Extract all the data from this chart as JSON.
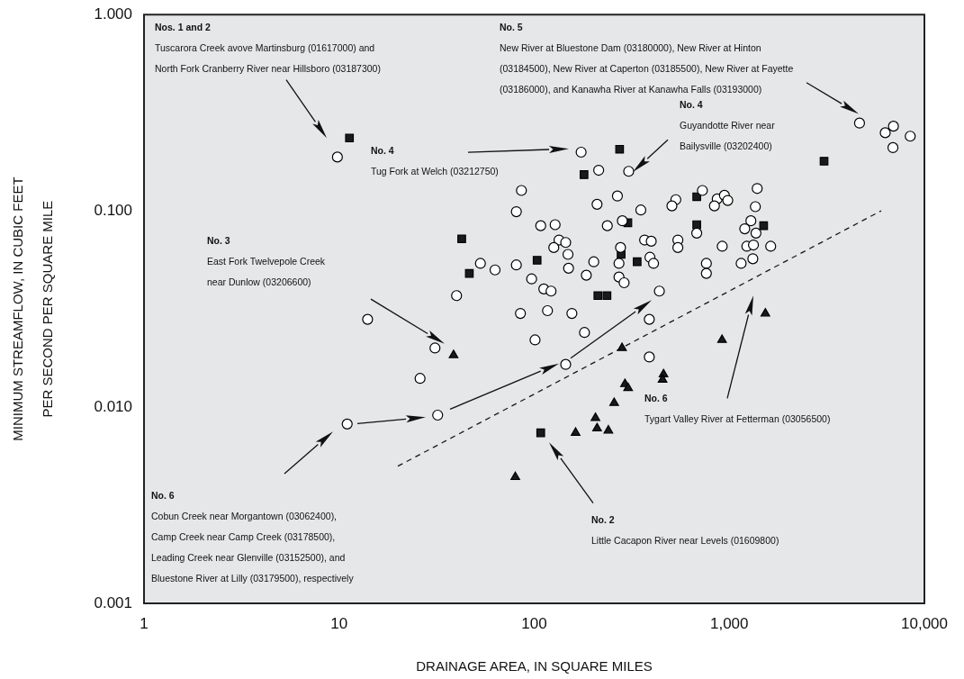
{
  "chart_data": {
    "type": "scatter",
    "xlabel": "DRAINAGE AREA, IN SQUARE MILES",
    "ylabel": "MINIMUM STREAMFLOW, IN CUBIC FEET\nPER SECOND PER SQUARE MILE",
    "log": "xy",
    "grid": false,
    "legend": false,
    "xlim": [
      1,
      10000
    ],
    "xticks": [
      1,
      10,
      100,
      {
        "value": 1000,
        "label": "1,000"
      },
      {
        "value": 10000,
        "label": "10,000"
      }
    ],
    "ylim": [
      0.001,
      1
    ],
    "yticks": [
      {
        "value": 0.001,
        "label": "0.001"
      },
      {
        "value": 0.01,
        "label": "0.010"
      },
      {
        "value": 0.1,
        "label": "0.100"
      },
      {
        "value": 1,
        "label": "1.000"
      }
    ],
    "series": [
      {
        "marker": "circle",
        "color": "#ffffff",
        "x": [
          9.8,
          174,
          214,
          305,
          86,
          81,
          210,
          267,
          108,
          128,
          237,
          283,
          134,
          145,
          126,
          149,
          150,
          53,
          63,
          81,
          202,
          272,
          277,
          185,
          272,
          289,
          97,
          112,
          122,
          40,
          85,
          117,
          156,
          14,
          4650,
          6940,
          6300,
          8460,
          6900,
          728,
          532,
          508,
          867,
          944,
          982,
          839,
          1390,
          1360,
          352,
          681,
          1290,
          1200,
          1370,
          368,
          398,
          545,
          545,
          920,
          1230,
          1330,
          1630,
          392,
          409,
          763,
          763,
          1150,
          1320,
          438,
          31,
          26,
          32,
          11,
          101,
          181,
          389,
          145,
          389
        ],
        "values": [
          0.188,
          0.199,
          0.161,
          0.159,
          0.127,
          0.099,
          0.108,
          0.119,
          0.084,
          0.085,
          0.084,
          0.089,
          0.071,
          0.069,
          0.065,
          0.06,
          0.051,
          0.054,
          0.05,
          0.053,
          0.055,
          0.054,
          0.065,
          0.047,
          0.046,
          0.043,
          0.045,
          0.04,
          0.039,
          0.037,
          0.03,
          0.031,
          0.03,
          0.028,
          0.28,
          0.27,
          0.25,
          0.24,
          0.21,
          0.127,
          0.114,
          0.106,
          0.115,
          0.12,
          0.113,
          0.106,
          0.13,
          0.105,
          0.101,
          0.077,
          0.089,
          0.081,
          0.077,
          0.071,
          0.07,
          0.071,
          0.065,
          0.066,
          0.066,
          0.067,
          0.066,
          0.058,
          0.054,
          0.054,
          0.048,
          0.054,
          0.057,
          0.039,
          0.02,
          0.014,
          0.0091,
          0.0082,
          0.022,
          0.024,
          0.028,
          0.0165,
          0.018
        ]
      },
      {
        "marker": "square",
        "color": "#1a1a1a",
        "x": [
          11.3,
          274,
          180,
          302,
          42.5,
          103.5,
          46.5,
          279,
          212,
          236,
          3060,
          681,
          681,
          1500,
          337,
          108
        ],
        "values": [
          0.235,
          0.206,
          0.153,
          0.087,
          0.072,
          0.056,
          0.048,
          0.06,
          0.037,
          0.037,
          0.179,
          0.118,
          0.085,
          0.084,
          0.055,
          0.0074
        ]
      },
      {
        "marker": "triangle",
        "color": "#1a1a1a",
        "x": [
          38.6,
          282,
          1530,
          918,
          460,
          455,
          292,
          303,
          257,
          206,
          210,
          240,
          163,
          80
        ],
        "values": [
          0.0184,
          0.02,
          0.03,
          0.022,
          0.0147,
          0.0138,
          0.0131,
          0.0125,
          0.0105,
          0.0088,
          0.0078,
          0.0076,
          0.0074,
          0.0044
        ]
      },
      {
        "type": "line",
        "marker": "none",
        "line_style": "dashed",
        "color": "#1a1a1a",
        "x": [
          20,
          6000
        ],
        "values": [
          0.005,
          0.1
        ]
      }
    ],
    "annotations": [
      "Nos. 1 and 2\nTuscarora Creek avove Martinsburg (01617000) and\nNorth Fork Cranberry River near Hillsboro (03187300)",
      "No. 5\nNew River at Bluestone Dam (03180000), New River at Hinton\n(03184500), New River at Caperton (03185500), New River at Fayette\n(03186000), and Kanawha River at Kanawha Falls (03193000)",
      "No. 4\nTug Fork at Welch (03212750)",
      "No. 4\nGuyandotte River near\nBailysville (03202400)",
      "No. 3\nEast Fork Twelvepole Creek\nnear Dunlow (03206600)",
      "No. 6\nTygart Valley River at Fetterman (03056500)",
      "No. 6\nCobun Creek near Morgantown (03062400),\nCamp Creek near Camp Creek (03178500),\nLeading Creek near Glenville (03152500), and\nBluestone River at Lilly (03179500), respectively",
      "No. 2\nLittle Cacapon River near Levels (01609800)"
    ]
  }
}
